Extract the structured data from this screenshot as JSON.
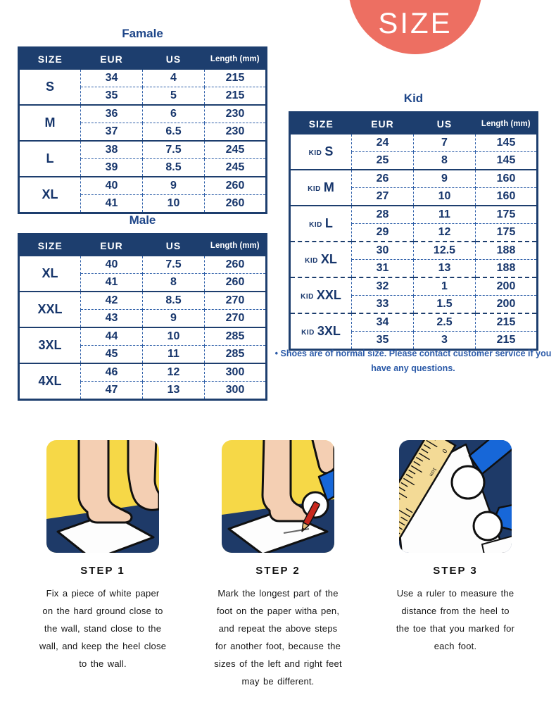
{
  "badge": {
    "label": "SIZE"
  },
  "colors": {
    "badge": "#ed6f62",
    "table_navy": "#1d3e6e",
    "table_text": "#16356b",
    "title_blue": "#1e4689",
    "note_blue": "#2b5aa8",
    "dash_blue": "#2e5fa9",
    "illus_yellow": "#f6d847",
    "illus_floor": "#1e3a68",
    "illus_skin": "#f4cfb3",
    "illus_sleeve": "#1767d8",
    "illus_ruler": "#f3da96"
  },
  "tables": {
    "female": {
      "title": "Famale",
      "headers": [
        "SIZE",
        "EUR",
        "US",
        "Length (mm)"
      ],
      "groups": [
        {
          "size": "S",
          "rows": [
            [
              "34",
              "4",
              "215"
            ],
            [
              "35",
              "5",
              "215"
            ]
          ]
        },
        {
          "size": "M",
          "rows": [
            [
              "36",
              "6",
              "230"
            ],
            [
              "37",
              "6.5",
              "230"
            ]
          ]
        },
        {
          "size": "L",
          "rows": [
            [
              "38",
              "7.5",
              "245"
            ],
            [
              "39",
              "8.5",
              "245"
            ]
          ]
        },
        {
          "size": "XL",
          "rows": [
            [
              "40",
              "9",
              "260"
            ],
            [
              "41",
              "10",
              "260"
            ]
          ]
        }
      ]
    },
    "male": {
      "title": "Male",
      "headers": [
        "SIZE",
        "EUR",
        "US",
        "Length (mm)"
      ],
      "groups": [
        {
          "size": "XL",
          "rows": [
            [
              "40",
              "7.5",
              "260"
            ],
            [
              "41",
              "8",
              "260"
            ]
          ]
        },
        {
          "size": "XXL",
          "rows": [
            [
              "42",
              "8.5",
              "270"
            ],
            [
              "43",
              "9",
              "270"
            ]
          ]
        },
        {
          "size": "3XL",
          "rows": [
            [
              "44",
              "10",
              "285"
            ],
            [
              "45",
              "11",
              "285"
            ]
          ]
        },
        {
          "size": "4XL",
          "rows": [
            [
              "46",
              "12",
              "300"
            ],
            [
              "47",
              "13",
              "300"
            ]
          ]
        }
      ]
    },
    "kid": {
      "title": "Kid",
      "headers": [
        "SIZE",
        "EUR",
        "US",
        "Length (mm)"
      ],
      "groups": [
        {
          "prefix": "KID",
          "size": "S",
          "rows": [
            [
              "24",
              "7",
              "145"
            ],
            [
              "25",
              "8",
              "145"
            ]
          ]
        },
        {
          "prefix": "KID",
          "size": "M",
          "rows": [
            [
              "26",
              "9",
              "160"
            ],
            [
              "27",
              "10",
              "160"
            ]
          ]
        },
        {
          "prefix": "KID",
          "size": "L",
          "rows": [
            [
              "28",
              "11",
              "175"
            ],
            [
              "29",
              "12",
              "175"
            ]
          ]
        },
        {
          "prefix": "KID",
          "size": "XL",
          "sep": "dashed",
          "rows": [
            [
              "30",
              "12.5",
              "188"
            ],
            [
              "31",
              "13",
              "188"
            ]
          ]
        },
        {
          "prefix": "KID",
          "size": "XXL",
          "sep": "dashed",
          "rows": [
            [
              "32",
              "1",
              "200"
            ],
            [
              "33",
              "1.5",
              "200"
            ]
          ]
        },
        {
          "prefix": "KID",
          "size": "3XL",
          "sep": "dashed",
          "rows": [
            [
              "34",
              "2.5",
              "215"
            ],
            [
              "35",
              "3",
              "215"
            ]
          ]
        }
      ]
    }
  },
  "note_lines": [
    "• Shoes are of normal size. Please contact customer service if you",
    "have any questions."
  ],
  "steps": [
    {
      "title": "STEP 1",
      "lines": [
        "Fix a piece of white paper",
        "on the hard ground close to",
        "the wall, stand close to the",
        "wall, and keep the heel close",
        "to the wall."
      ]
    },
    {
      "title": "STEP 2",
      "lines": [
        "Mark the longest part of the",
        "foot on the paper witha pen,",
        "and repeat the above steps",
        "for another foot, because the",
        "sizes of the left and right feet",
        "may be different."
      ]
    },
    {
      "title": "STEP 3",
      "lines": [
        "Use a ruler to measure the",
        "distance from the heel to",
        "the toe that you marked for",
        "each foot."
      ]
    }
  ]
}
